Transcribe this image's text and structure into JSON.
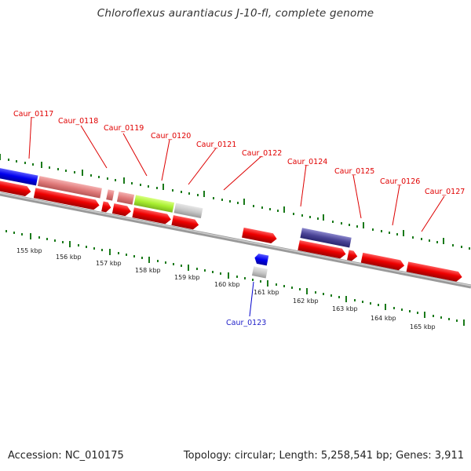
{
  "title": "Chloroflexus aurantiacus J-10-fl, complete genome",
  "footer": {
    "accession": "Accession: NC_010175",
    "topology": "Topology: circular; Length: 5,258,541 bp; Genes: 3,911"
  },
  "colors": {
    "forward_cds": "#ee0000",
    "reverse_cds": "#0000ee",
    "label_top": "#dd0000",
    "label_bottom": "#0000cc",
    "tick": "#1a7a1a",
    "backbone": "#888888"
  },
  "scale_labels": [
    "155 kbp",
    "156 kbp",
    "157 kbp",
    "158 kbp",
    "159 kbp",
    "160 kbp",
    "161 kbp",
    "162 kbp",
    "163 kbp",
    "164 kbp",
    "165 kbp"
  ],
  "gene_labels_top": [
    "Caur_0117",
    "Caur_0118",
    "Caur_0119",
    "Caur_0120",
    "Caur_0121",
    "Caur_0122",
    "Caur_0124",
    "Caur_0125",
    "Caur_0126",
    "Caur_0127"
  ],
  "gene_labels_bottom": [
    "Caur_0123"
  ]
}
